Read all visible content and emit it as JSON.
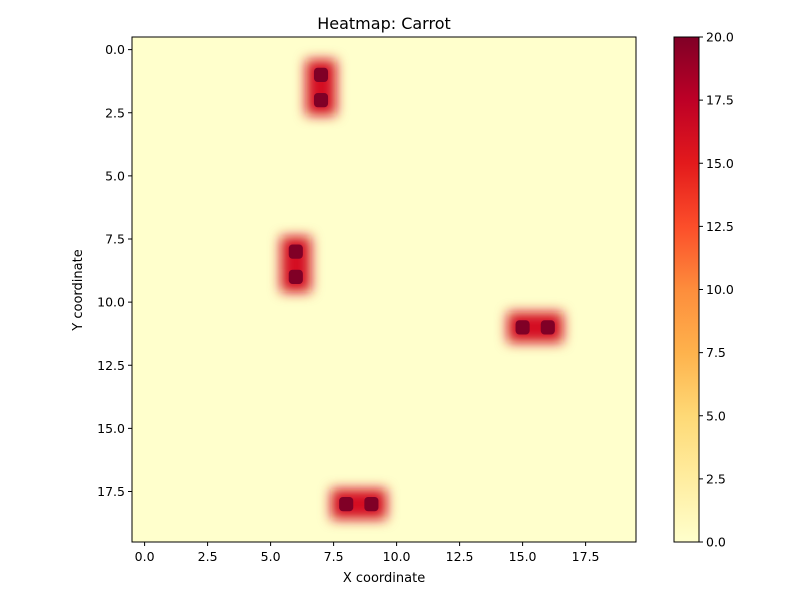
{
  "chart_data": {
    "type": "heatmap",
    "title": "Heatmap: Carrot",
    "xlabel": "X coordinate",
    "ylabel": "Y coordinate",
    "grid_shape": [
      20,
      20
    ],
    "xlim": [
      -0.5,
      19.5
    ],
    "ylim": [
      19.5,
      -0.5
    ],
    "y_axis_inverted": true,
    "grid": false,
    "x_ticks": [
      0.0,
      2.5,
      5.0,
      7.5,
      10.0,
      12.5,
      15.0,
      17.5
    ],
    "x_tick_labels": [
      "0.0",
      "2.5",
      "5.0",
      "7.5",
      "10.0",
      "12.5",
      "15.0",
      "17.5"
    ],
    "y_ticks": [
      0.0,
      2.5,
      5.0,
      7.5,
      10.0,
      12.5,
      15.0,
      17.5
    ],
    "y_tick_labels": [
      "0.0",
      "2.5",
      "5.0",
      "7.5",
      "10.0",
      "12.5",
      "15.0",
      "17.5"
    ],
    "background_value": 0,
    "hot_cells": [
      {
        "x": 7,
        "y": 1,
        "value": 20
      },
      {
        "x": 7,
        "y": 2,
        "value": 20
      },
      {
        "x": 6,
        "y": 8,
        "value": 20
      },
      {
        "x": 6,
        "y": 9,
        "value": 20
      },
      {
        "x": 15,
        "y": 11,
        "value": 20
      },
      {
        "x": 16,
        "y": 11,
        "value": 20
      },
      {
        "x": 8,
        "y": 18,
        "value": 20
      },
      {
        "x": 9,
        "y": 18,
        "value": 20
      }
    ],
    "interpolation": "smooth",
    "colorbar": {
      "colormap": "YlOrRd",
      "min": 0,
      "max": 20,
      "ticks": [
        0.0,
        2.5,
        5.0,
        7.5,
        10.0,
        12.5,
        15.0,
        17.5,
        20.0
      ],
      "tick_labels": [
        "0.0",
        "2.5",
        "5.0",
        "7.5",
        "10.0",
        "12.5",
        "15.0",
        "17.5",
        "20.0"
      ]
    }
  }
}
